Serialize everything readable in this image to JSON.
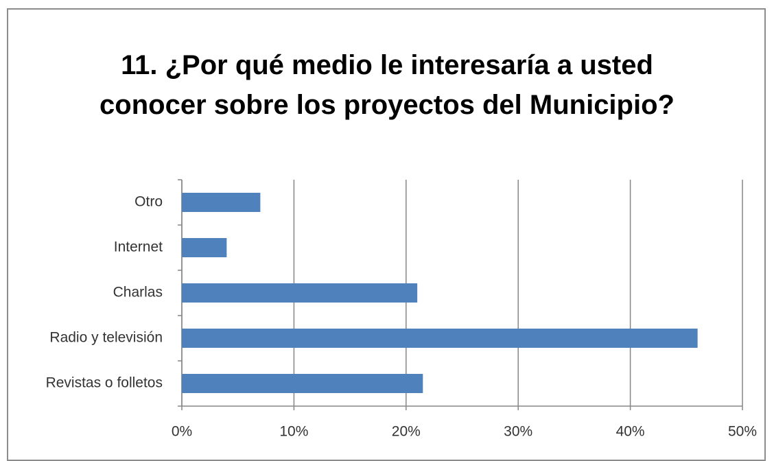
{
  "chart_data": {
    "type": "bar",
    "orientation": "horizontal",
    "title": "11. ¿Por qué medio le interesaría a usted conocer sobre los proyectos del Municipio?",
    "categories": [
      "Otro",
      "Internet",
      "Charlas",
      "Radio y televisión",
      "Revistas o folletos"
    ],
    "values": [
      7,
      4,
      21,
      46,
      21.5
    ],
    "color": "#4f81bd",
    "xlim": [
      0,
      50
    ],
    "xticks": [
      {
        "value": 0,
        "label": "0%"
      },
      {
        "value": 10,
        "label": "10%"
      },
      {
        "value": 20,
        "label": "20%"
      },
      {
        "value": 30,
        "label": "30%"
      },
      {
        "value": 40,
        "label": "40%"
      },
      {
        "value": 50,
        "label": "50%"
      }
    ],
    "grid": true
  }
}
